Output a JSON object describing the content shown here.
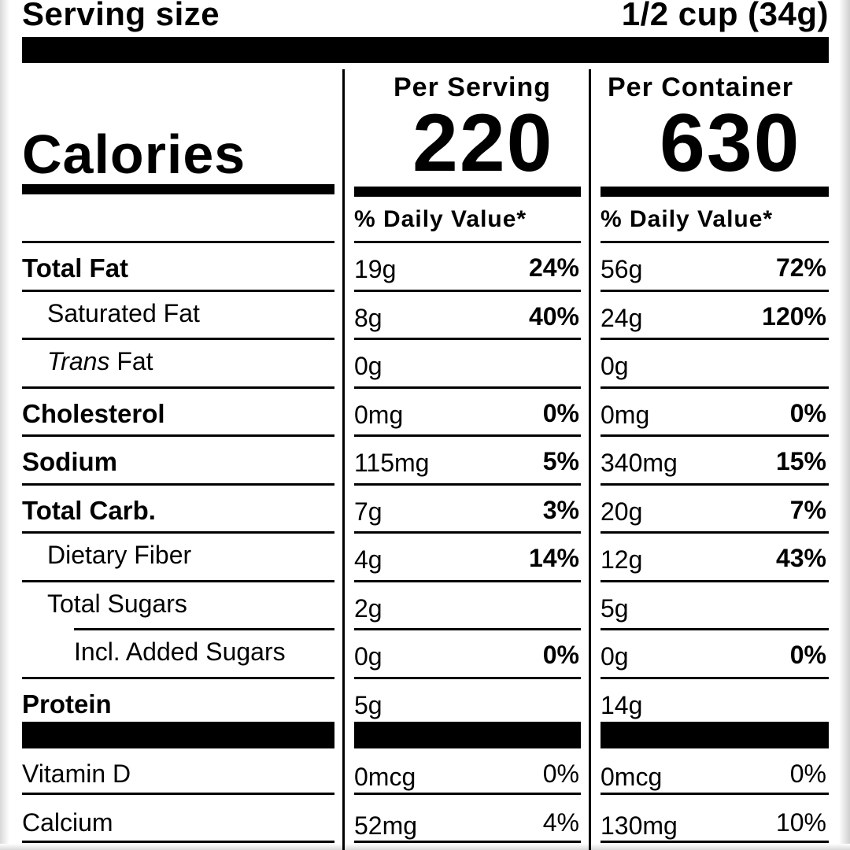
{
  "serving": {
    "label": "Serving size",
    "value": "1/2 cup (34g)"
  },
  "calories": {
    "label": "Calories",
    "per_serving_label": "Per Serving",
    "per_serving_value": "220",
    "per_container_label": "Per Container",
    "per_container_value": "630"
  },
  "daily_value_label": "% Daily Value*",
  "nutrients": [
    {
      "name": "Total Fat",
      "style": "bold",
      "serving_amount": "19g",
      "serving_pct": "24%",
      "container_amount": "56g",
      "container_pct": "72%"
    },
    {
      "name": "Saturated Fat",
      "style": "indent",
      "serving_amount": "8g",
      "serving_pct": "40%",
      "container_amount": "24g",
      "container_pct": "120%"
    },
    {
      "name_italic": "Trans",
      "name": " Fat",
      "style": "indent",
      "serving_amount": "0g",
      "serving_pct": "",
      "container_amount": "0g",
      "container_pct": ""
    },
    {
      "name": "Cholesterol",
      "style": "bold",
      "serving_amount": "0mg",
      "serving_pct": "0%",
      "container_amount": "0mg",
      "container_pct": "0%"
    },
    {
      "name": "Sodium",
      "style": "bold",
      "serving_amount": "115mg",
      "serving_pct": "5%",
      "container_amount": "340mg",
      "container_pct": "15%"
    },
    {
      "name": "Total Carb.",
      "style": "bold",
      "serving_amount": "7g",
      "serving_pct": "3%",
      "container_amount": "20g",
      "container_pct": "7%"
    },
    {
      "name": "Dietary Fiber",
      "style": "indent",
      "serving_amount": "4g",
      "serving_pct": "14%",
      "container_amount": "12g",
      "container_pct": "43%"
    },
    {
      "name": "Total Sugars",
      "style": "indent",
      "serving_amount": "2g",
      "serving_pct": "",
      "container_amount": "5g",
      "container_pct": ""
    },
    {
      "name": "Incl. Added Sugars",
      "style": "indent2",
      "serving_amount": "0g",
      "serving_pct": "0%",
      "container_amount": "0g",
      "container_pct": "0%"
    },
    {
      "name": "Protein",
      "style": "bold",
      "serving_amount": "5g",
      "serving_pct": "",
      "container_amount": "14g",
      "container_pct": ""
    }
  ],
  "vitamins": [
    {
      "name": "Vitamin D",
      "serving_amount": "0mcg",
      "serving_pct": "0%",
      "container_amount": "0mcg",
      "container_pct": "0%"
    },
    {
      "name": "Calcium",
      "serving_amount": "52mg",
      "serving_pct": "4%",
      "container_amount": "130mg",
      "container_pct": "10%"
    }
  ]
}
